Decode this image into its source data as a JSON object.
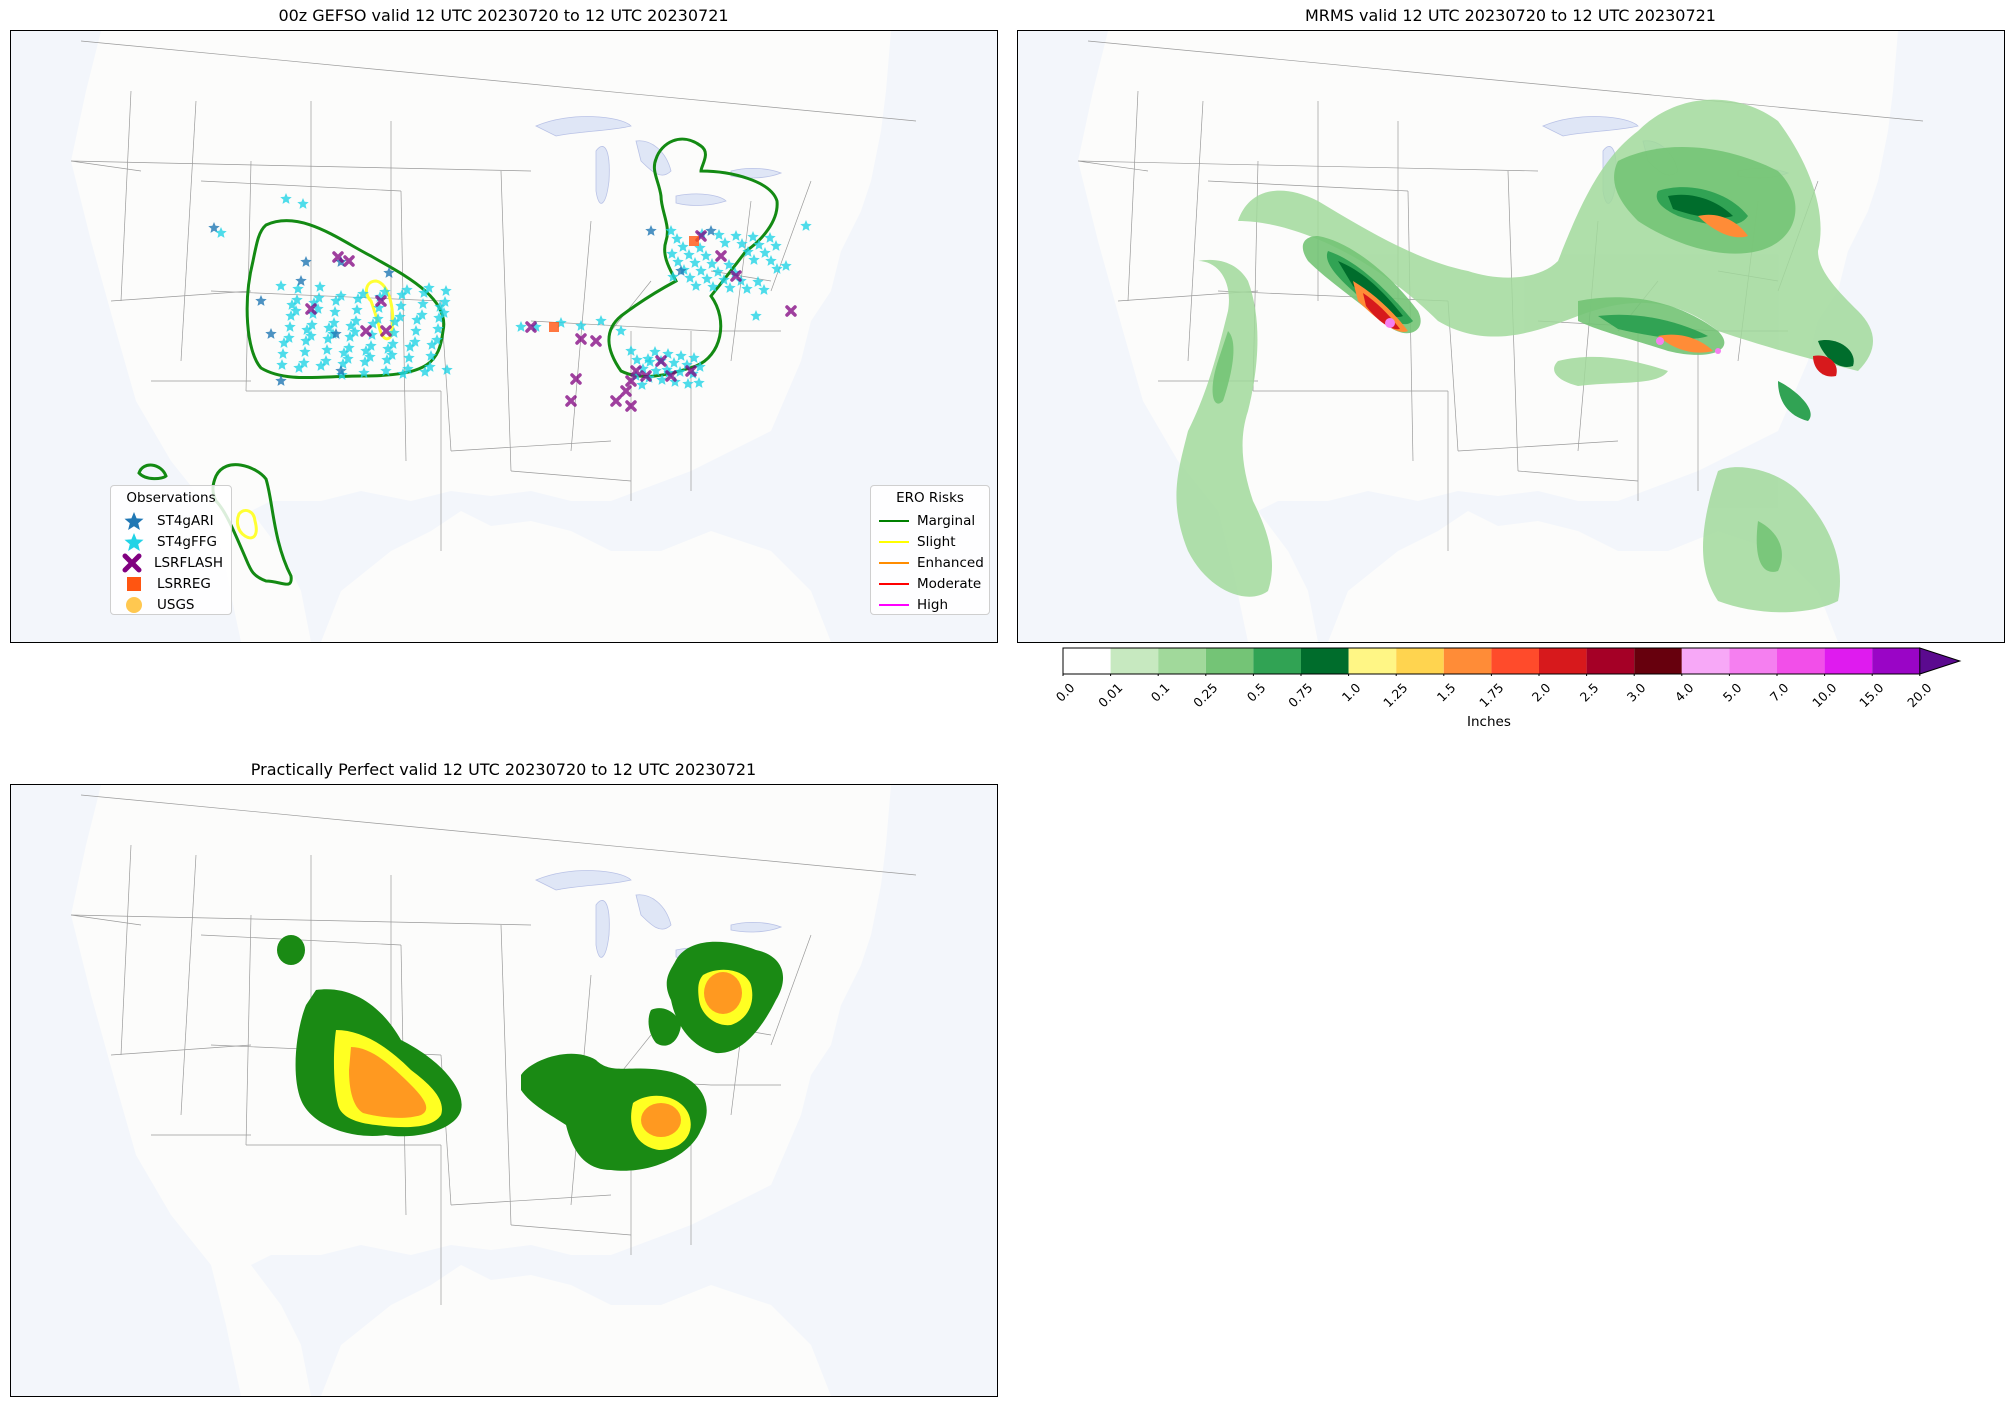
{
  "panels": {
    "gefso": {
      "title": "00z GEFSO valid 12 UTC 20230720 to 12 UTC 20230721"
    },
    "mrms": {
      "title": "MRMS valid 12 UTC 20230720 to 12 UTC 20230721"
    },
    "pp": {
      "title": "Practically Perfect valid 12 UTC 20230720 to 12 UTC 20230721"
    }
  },
  "observations_legend": {
    "title": "Observations",
    "items": [
      {
        "label": "ST4gARI",
        "icon": "star-icon",
        "color": "#1f77b4"
      },
      {
        "label": "ST4gFFG",
        "icon": "star-icon",
        "color": "#22d3e6"
      },
      {
        "label": "LSRFLASH",
        "icon": "x-mark-icon",
        "color": "#800080"
      },
      {
        "label": "LSRREG",
        "icon": "square-icon",
        "color": "#ff5511"
      },
      {
        "label": "USGS",
        "icon": "circle-icon",
        "color": "#ffc850"
      }
    ]
  },
  "ero_legend": {
    "title": "ERO Risks",
    "items": [
      {
        "label": "Marginal",
        "color": "#008000"
      },
      {
        "label": "Slight",
        "color": "#ffff00"
      },
      {
        "label": "Enhanced",
        "color": "#ff8c00"
      },
      {
        "label": "Moderate",
        "color": "#ff0000"
      },
      {
        "label": "High",
        "color": "#ff00ff"
      }
    ]
  },
  "colorbar": {
    "label": "Inches",
    "ticks": [
      "0.0",
      "0.01",
      "0.1",
      "0.25",
      "0.5",
      "0.75",
      "1.0",
      "1.25",
      "1.5",
      "1.75",
      "2.0",
      "2.5",
      "3.0",
      "4.0",
      "5.0",
      "7.0",
      "10.0",
      "15.0",
      "20.0"
    ],
    "colors": [
      "#ffffff",
      "#c7e9c0",
      "#a1d99b",
      "#74c476",
      "#31a354",
      "#006d2c",
      "#fff685",
      "#ffd44f",
      "#ff8c37",
      "#ff4b2b",
      "#d7191c",
      "#a50026",
      "#67000d",
      "#f7a8f7",
      "#f57ff0",
      "#f24fe9",
      "#df1bef",
      "#9a05c6"
    ],
    "extend_color": "#5b0a8f"
  },
  "colors": {
    "land": "#fcfcfb",
    "water": "#f3f6fb",
    "lakes": "#dfe6f6",
    "borders": "#9a9a9a"
  }
}
